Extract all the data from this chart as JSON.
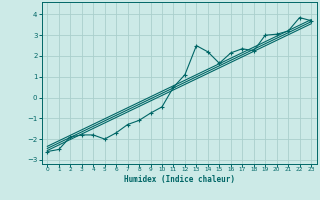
{
  "xlabel": "Humidex (Indice chaleur)",
  "bg_color": "#cceae7",
  "grid_color": "#aacfcc",
  "line_color": "#006666",
  "xlim": [
    -0.5,
    23.5
  ],
  "ylim": [
    -3.2,
    4.6
  ],
  "xticks": [
    0,
    1,
    2,
    3,
    4,
    5,
    6,
    7,
    8,
    9,
    10,
    11,
    12,
    13,
    14,
    15,
    16,
    17,
    18,
    19,
    20,
    21,
    22,
    23
  ],
  "yticks": [
    -3,
    -2,
    -1,
    0,
    1,
    2,
    3,
    4
  ],
  "series": [
    [
      0,
      -2.6
    ],
    [
      1,
      -2.5
    ],
    [
      2,
      -1.9
    ],
    [
      3,
      -1.8
    ],
    [
      4,
      -1.8
    ],
    [
      5,
      -2.0
    ],
    [
      6,
      -1.7
    ],
    [
      7,
      -1.3
    ],
    [
      8,
      -1.1
    ],
    [
      9,
      -0.75
    ],
    [
      10,
      -0.45
    ],
    [
      11,
      0.5
    ],
    [
      12,
      1.1
    ],
    [
      13,
      2.5
    ],
    [
      14,
      2.2
    ],
    [
      15,
      1.65
    ],
    [
      16,
      2.15
    ],
    [
      17,
      2.35
    ],
    [
      18,
      2.25
    ],
    [
      19,
      3.0
    ],
    [
      20,
      3.05
    ],
    [
      21,
      3.2
    ],
    [
      22,
      3.85
    ],
    [
      23,
      3.7
    ]
  ],
  "trend_lines": [
    [
      [
        0,
        -2.55
      ],
      [
        23,
        3.55
      ]
    ],
    [
      [
        0,
        -2.45
      ],
      [
        23,
        3.65
      ]
    ],
    [
      [
        0,
        -2.35
      ],
      [
        23,
        3.75
      ]
    ]
  ]
}
